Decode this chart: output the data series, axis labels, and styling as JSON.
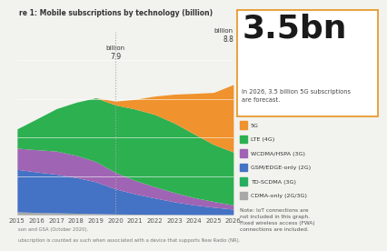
{
  "title": "re 1: Mobile subscriptions by technology (billion)",
  "years": [
    2015,
    2016,
    2017,
    2018,
    2019,
    2020,
    2021,
    2022,
    2023,
    2024,
    2025,
    2026
  ],
  "stacks": {
    "CDMA-only (2G/3G)": [
      0.15,
      0.12,
      0.1,
      0.08,
      0.06,
      0.04,
      0.03,
      0.02,
      0.02,
      0.01,
      0.01,
      0.01
    ],
    "GSM/EDGE-only (2G)": [
      2.2,
      2.1,
      2.0,
      1.85,
      1.65,
      1.3,
      1.05,
      0.85,
      0.65,
      0.5,
      0.38,
      0.28
    ],
    "WCDMA/HSPA (3G)": [
      1.1,
      1.15,
      1.2,
      1.15,
      1.05,
      0.85,
      0.7,
      0.58,
      0.48,
      0.38,
      0.3,
      0.22
    ],
    "LTE (4G)": [
      1.0,
      1.6,
      2.2,
      2.75,
      3.3,
      3.5,
      3.7,
      3.75,
      3.6,
      3.3,
      2.95,
      2.74
    ],
    "5G": [
      0.0,
      0.0,
      0.0,
      0.0,
      0.0,
      0.2,
      0.5,
      0.95,
      1.5,
      2.1,
      2.7,
      3.5
    ]
  },
  "colors": {
    "CDMA-only (2G/3G)": "#a8a8a8",
    "GSM/EDGE-only (2G)": "#4472c4",
    "WCDMA/HSPA (3G)": "#a064b4",
    "TD-SCDMA (3G)": "#2ecc71",
    "LTE (4G)": "#2db050",
    "5G": "#f0922d"
  },
  "legend_order": [
    "5G",
    "LTE (4G)",
    "WCDMA/HSPA (3G)",
    "GSM/EDGE-only (2G)",
    "TD-SCDMA (3G)",
    "CDMA-only (2G/3G)"
  ],
  "legend_labels": [
    "5G",
    "LTE (4G)",
    "WCDMA/HSPA (3G)",
    "GSM/EDGE-only (2G)",
    "TD-SCDMA (3G)",
    "CDMA-only (2G/3G)"
  ],
  "annotation_2020_top": "7.9",
  "annotation_2020_bot": "billion",
  "annotation_2026_top": "8.8",
  "annotation_2026_bot": "billion",
  "highlight_year": 2020,
  "big_text": "3.5bn",
  "big_subtext": "In 2026, 3.5 billion 5G subscriptions\nare forecast.",
  "note": "Note: IoT connections are\nnot included in this graph.\nFixed wireless access (FWA)\nconnections are included.",
  "source_line1": "son and GSA (October 2020).",
  "source_line2": "ubscription is counted as such when associated with a device that supports New Radio (NR).",
  "background_color": "#f2f2ee",
  "box_color": "#f5f5f0",
  "ylim": [
    0,
    9.5
  ]
}
